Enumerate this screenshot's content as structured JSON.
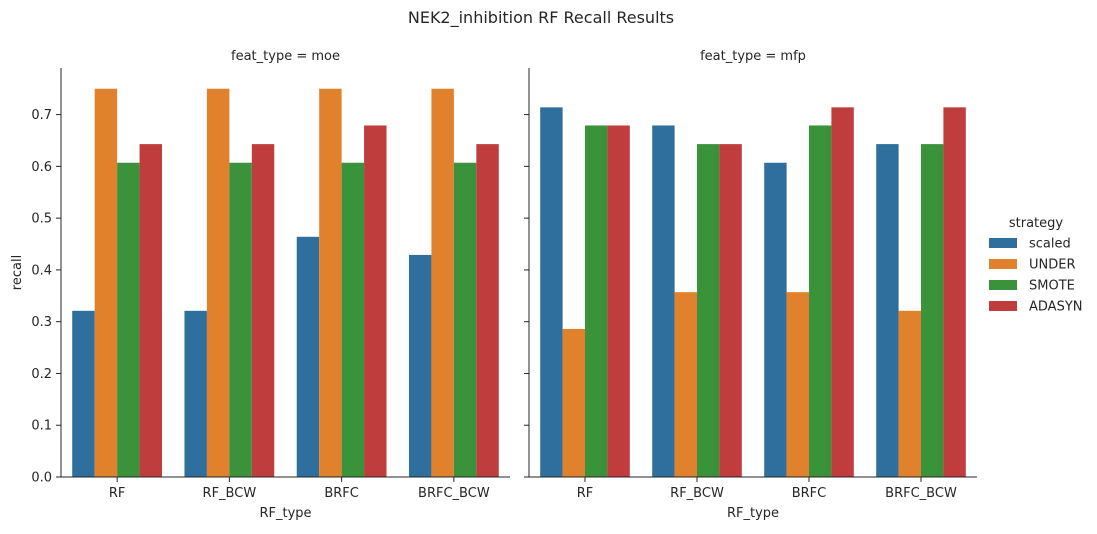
{
  "title": "NEK2_inhibition RF Recall Results",
  "legend": {
    "title": "strategy",
    "placement": "right"
  },
  "chart_data": {
    "type": "bar",
    "title": "NEK2_inhibition RF Recall Results",
    "categories": [
      "RF",
      "RF_BCW",
      "BRFC",
      "BRFC_BCW"
    ],
    "xlabel": "RF_type",
    "ylabel": "recall",
    "ylim": [
      0,
      0.79
    ],
    "yticks": [
      0.0,
      0.1,
      0.2,
      0.3,
      0.4,
      0.5,
      0.6,
      0.7
    ],
    "ytick_labels": [
      "0.0",
      "0.1",
      "0.2",
      "0.3",
      "0.4",
      "0.5",
      "0.6",
      "0.7"
    ],
    "grid": false,
    "legend_placement": "right",
    "strategy_colors": {
      "scaled": "#2e6f9e",
      "UNDER": "#e1812c",
      "SMOTE": "#3a923a",
      "ADASYN": "#c03d3e"
    },
    "panels": [
      {
        "title": "feat_type = moe",
        "series": [
          {
            "name": "scaled",
            "color": "#2e6f9e",
            "values": [
              0.321,
              0.321,
              0.464,
              0.429
            ]
          },
          {
            "name": "UNDER",
            "color": "#e1812c",
            "values": [
              0.75,
              0.75,
              0.75,
              0.75
            ]
          },
          {
            "name": "SMOTE",
            "color": "#3a923a",
            "values": [
              0.607,
              0.607,
              0.607,
              0.607
            ]
          },
          {
            "name": "ADASYN",
            "color": "#c03d3e",
            "values": [
              0.643,
              0.643,
              0.679,
              0.643
            ]
          }
        ]
      },
      {
        "title": "feat_type = mfp",
        "series": [
          {
            "name": "scaled",
            "color": "#2e6f9e",
            "values": [
              0.714,
              0.679,
              0.607,
              0.643
            ]
          },
          {
            "name": "UNDER",
            "color": "#e1812c",
            "values": [
              0.286,
              0.357,
              0.357,
              0.321
            ]
          },
          {
            "name": "SMOTE",
            "color": "#3a923a",
            "values": [
              0.679,
              0.643,
              0.679,
              0.643
            ]
          },
          {
            "name": "ADASYN",
            "color": "#c03d3e",
            "values": [
              0.679,
              0.643,
              0.714,
              0.714
            ]
          }
        ]
      }
    ]
  }
}
